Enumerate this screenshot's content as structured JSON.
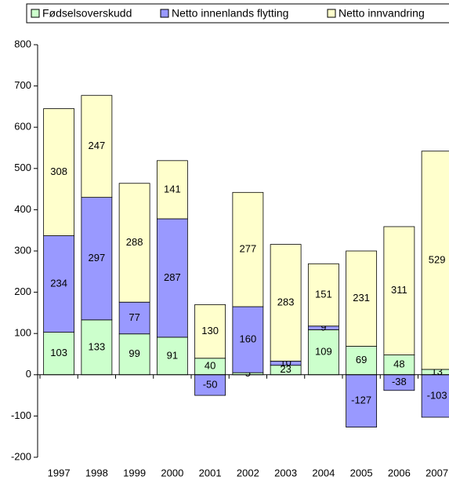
{
  "chart_data": {
    "type": "stacked_bar",
    "categories": [
      "1997",
      "1998",
      "1999",
      "2000",
      "2001",
      "2002",
      "2003",
      "2004",
      "2005",
      "2006",
      "2007"
    ],
    "series": [
      {
        "name": "Fødselsoverskudd",
        "color": "#ccffcc",
        "values": [
          103,
          133,
          99,
          91,
          40,
          5,
          23,
          109,
          69,
          48,
          13
        ]
      },
      {
        "name": "Netto innenlands flytting",
        "color": "#9999ff",
        "values": [
          234,
          297,
          77,
          287,
          -50,
          160,
          10,
          9,
          -127,
          -38,
          -103
        ]
      },
      {
        "name": "Netto innvandring",
        "color": "#ffffcc",
        "values": [
          308,
          247,
          288,
          141,
          130,
          277,
          283,
          151,
          231,
          311,
          529
        ]
      }
    ],
    "ylim": [
      -200,
      800
    ],
    "yticks": [
      -200,
      -100,
      0,
      100,
      200,
      300,
      400,
      500,
      600,
      700,
      800
    ],
    "legend": "top",
    "grid": false
  }
}
